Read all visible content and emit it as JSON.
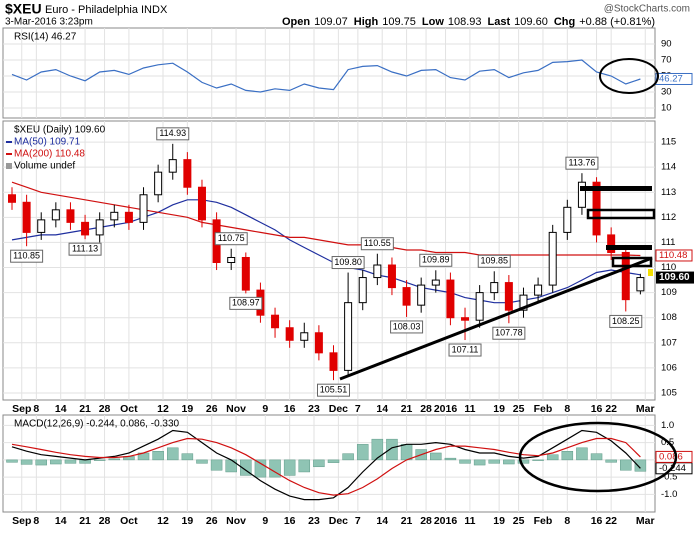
{
  "header": {
    "symbol": "$XEU",
    "name": "Euro - Philadelphia INDX",
    "date": "3-Mar-2016 3:23pm",
    "quote": [
      {
        "label": "Open",
        "value": "109.07"
      },
      {
        "label": "High",
        "value": "109.75"
      },
      {
        "label": "Low",
        "value": "108.93"
      },
      {
        "label": "Last",
        "value": "109.60"
      },
      {
        "label": "Chg",
        "value": "+0.88 (+0.81%)"
      }
    ],
    "source": "@StockCharts.com"
  },
  "chart_data": [
    {
      "type": "line",
      "title": "RSI(14) 46.27",
      "x": [
        0,
        3,
        6,
        9,
        12,
        15,
        18,
        21,
        24,
        27,
        30,
        33,
        36,
        39,
        42,
        45,
        48,
        51,
        54,
        57,
        60,
        63,
        66,
        69,
        72,
        75,
        78,
        81,
        84,
        87,
        90,
        93,
        96,
        99,
        102,
        105,
        108,
        111,
        114,
        117,
        120,
        123,
        126,
        129
      ],
      "xlim": [
        0,
        132
      ],
      "ylim": [
        -2.5,
        110
      ],
      "yticks": [
        10,
        30,
        50,
        70,
        90
      ],
      "grid": true,
      "series": [
        {
          "color": "#3a6fc4",
          "box": true,
          "values": [
            52,
            45,
            55,
            58,
            50,
            44,
            55,
            57,
            52,
            60,
            64,
            66,
            55,
            42,
            35,
            40,
            32,
            30,
            34,
            32,
            40,
            35,
            33,
            58,
            62,
            63,
            55,
            50,
            57,
            58,
            48,
            45,
            56,
            58,
            48,
            54,
            57,
            67,
            68,
            70,
            55,
            50,
            40,
            46.27
          ]
        }
      ]
    },
    {
      "type": "candlestick",
      "title": "$XEU (Daily) 109.60",
      "volume_legend": "Volume undef",
      "x": [
        0,
        3,
        6,
        9,
        12,
        15,
        18,
        21,
        24,
        27,
        30,
        33,
        36,
        39,
        42,
        45,
        48,
        51,
        54,
        57,
        60,
        63,
        66,
        69,
        72,
        75,
        78,
        81,
        84,
        87,
        90,
        93,
        96,
        99,
        102,
        105,
        108,
        111,
        114,
        117,
        120,
        123,
        126,
        129
      ],
      "xlim": [
        0,
        132
      ],
      "xticks": [
        {
          "value": 2,
          "label": "Sep"
        },
        {
          "value": 5,
          "label": "8"
        },
        {
          "value": 10,
          "label": "14"
        },
        {
          "value": 15,
          "label": "21"
        },
        {
          "value": 19,
          "label": "28"
        },
        {
          "value": 24,
          "label": "Oct"
        },
        {
          "value": 31,
          "label": "12"
        },
        {
          "value": 36,
          "label": "19"
        },
        {
          "value": 41,
          "label": "26"
        },
        {
          "value": 46,
          "label": "Nov"
        },
        {
          "value": 52,
          "label": "9"
        },
        {
          "value": 57,
          "label": "16"
        },
        {
          "value": 62,
          "label": "23"
        },
        {
          "value": 67,
          "label": "Dec"
        },
        {
          "value": 71,
          "label": "7"
        },
        {
          "value": 76,
          "label": "14"
        },
        {
          "value": 81,
          "label": "21"
        },
        {
          "value": 85,
          "label": "28"
        },
        {
          "value": 89,
          "label": "2016"
        },
        {
          "value": 94,
          "label": "11"
        },
        {
          "value": 100,
          "label": "19"
        },
        {
          "value": 104,
          "label": "25"
        },
        {
          "value": 109,
          "label": "Feb"
        },
        {
          "value": 114,
          "label": "8"
        },
        {
          "value": 120,
          "label": "16"
        },
        {
          "value": 123,
          "label": "22"
        },
        {
          "value": 130,
          "label": "Mar"
        }
      ],
      "ylim": [
        104.72,
        115.84
      ],
      "yticks": [
        105,
        106,
        107,
        108,
        109,
        110,
        111,
        112,
        113,
        114,
        115
      ],
      "grid": true,
      "up_color": "#000000",
      "down_color": "#e00000",
      "open": [
        112.9,
        112.6,
        111.4,
        111.9,
        112.3,
        111.8,
        111.3,
        111.9,
        112.2,
        111.8,
        112.9,
        113.8,
        114.3,
        113.2,
        111.9,
        110.2,
        110.4,
        109.1,
        108.1,
        107.6,
        107.1,
        107.4,
        106.6,
        105.9,
        108.6,
        109.6,
        110.1,
        109.2,
        108.5,
        109.3,
        109.5,
        108.0,
        107.9,
        109.0,
        109.4,
        108.3,
        108.9,
        109.3,
        111.4,
        112.4,
        113.4,
        111.3,
        110.6,
        109.07
      ],
      "high": [
        113.2,
        112.9,
        112.2,
        112.6,
        112.6,
        112.1,
        112.2,
        112.5,
        112.5,
        113.2,
        114.1,
        114.93,
        114.6,
        113.5,
        112.2,
        110.75,
        110.6,
        109.4,
        108.4,
        107.9,
        107.8,
        107.7,
        106.9,
        109.8,
        109.9,
        110.55,
        110.4,
        109.5,
        109.6,
        109.89,
        109.8,
        108.4,
        109.3,
        109.85,
        109.7,
        109.2,
        109.6,
        111.7,
        112.7,
        113.76,
        113.6,
        111.6,
        110.9,
        109.75
      ],
      "low": [
        112.3,
        110.85,
        111.1,
        111.6,
        111.5,
        111.13,
        111.0,
        111.6,
        111.5,
        111.5,
        112.6,
        113.5,
        112.9,
        111.6,
        109.9,
        109.9,
        108.97,
        107.8,
        107.2,
        106.8,
        106.8,
        106.3,
        105.51,
        105.7,
        108.3,
        109.3,
        108.9,
        108.03,
        108.2,
        109.0,
        107.7,
        107.11,
        107.6,
        108.7,
        107.78,
        108.0,
        108.6,
        109.0,
        111.1,
        112.1,
        111.0,
        110.3,
        108.25,
        108.93
      ],
      "close": [
        112.6,
        111.4,
        111.9,
        112.3,
        111.8,
        111.3,
        111.9,
        112.2,
        111.8,
        112.9,
        113.8,
        114.3,
        113.2,
        111.9,
        110.2,
        110.4,
        109.1,
        108.1,
        107.6,
        107.1,
        107.4,
        106.6,
        105.9,
        108.6,
        109.6,
        110.1,
        109.2,
        108.5,
        109.3,
        109.5,
        108.0,
        107.9,
        109.0,
        109.4,
        108.3,
        108.9,
        109.3,
        111.4,
        112.4,
        113.4,
        111.3,
        110.6,
        108.72,
        109.6
      ],
      "high_labels": [
        null,
        null,
        null,
        null,
        null,
        null,
        null,
        null,
        null,
        null,
        null,
        "114.93",
        null,
        null,
        null,
        "110.75",
        null,
        null,
        null,
        null,
        null,
        null,
        null,
        "109.80",
        null,
        "110.55",
        null,
        null,
        null,
        "109.89",
        null,
        null,
        null,
        "109.85",
        null,
        null,
        null,
        null,
        null,
        "113.76",
        null,
        null,
        null,
        null
      ],
      "low_labels": [
        null,
        "110.85",
        null,
        null,
        null,
        "111.13",
        null,
        null,
        null,
        null,
        null,
        null,
        null,
        null,
        null,
        null,
        "108.97",
        null,
        null,
        null,
        null,
        null,
        "105.51",
        null,
        null,
        null,
        null,
        "108.03",
        null,
        null,
        null,
        "107.11",
        null,
        null,
        "107.78",
        null,
        null,
        null,
        null,
        null,
        null,
        null,
        "108.25",
        null
      ],
      "series": [
        {
          "name": "MA(50) 109.71",
          "color": "#1f2f9f",
          "values": [
            111.1,
            111.2,
            111.3,
            111.3,
            111.4,
            111.5,
            111.6,
            111.7,
            111.8,
            112.0,
            112.2,
            112.5,
            112.7,
            112.7,
            112.6,
            112.4,
            112.1,
            111.8,
            111.5,
            111.1,
            110.8,
            110.5,
            110.2,
            110.0,
            109.9,
            109.7,
            109.6,
            109.4,
            109.2,
            109.1,
            109.0,
            108.8,
            108.7,
            108.6,
            108.6,
            108.7,
            108.8,
            109.0,
            109.2,
            109.5,
            109.8,
            109.9,
            109.8,
            109.71
          ]
        },
        {
          "name": "MA(200) 110.48",
          "color": "#d01010",
          "box": true,
          "values": [
            113.4,
            113.2,
            113.0,
            112.9,
            112.8,
            112.7,
            112.6,
            112.5,
            112.4,
            112.3,
            112.2,
            112.1,
            112.0,
            111.8,
            111.7,
            111.6,
            111.5,
            111.4,
            111.3,
            111.2,
            111.2,
            111.1,
            111.0,
            110.9,
            110.9,
            110.8,
            110.8,
            110.7,
            110.7,
            110.6,
            110.6,
            110.6,
            110.5,
            110.5,
            110.5,
            110.5,
            110.5,
            110.5,
            110.5,
            110.5,
            110.5,
            110.5,
            110.5,
            110.48
          ]
        }
      ]
    },
    {
      "type": "macd",
      "title": "MACD(12,26,9) -0.244, 0.086, -0.330",
      "x": [
        0,
        3,
        6,
        9,
        12,
        15,
        18,
        21,
        24,
        27,
        30,
        33,
        36,
        39,
        42,
        45,
        48,
        51,
        54,
        57,
        60,
        63,
        66,
        69,
        72,
        75,
        78,
        81,
        84,
        87,
        90,
        93,
        96,
        99,
        102,
        105,
        108,
        111,
        114,
        117,
        120,
        123,
        126,
        129
      ],
      "xlim": [
        0,
        132
      ],
      "xticks": [
        {
          "value": 2,
          "label": "Sep"
        },
        {
          "value": 5,
          "label": "8"
        },
        {
          "value": 10,
          "label": "14"
        },
        {
          "value": 15,
          "label": "21"
        },
        {
          "value": 19,
          "label": "28"
        },
        {
          "value": 24,
          "label": "Oct"
        },
        {
          "value": 31,
          "label": "12"
        },
        {
          "value": 36,
          "label": "19"
        },
        {
          "value": 41,
          "label": "26"
        },
        {
          "value": 46,
          "label": "Nov"
        },
        {
          "value": 52,
          "label": "9"
        },
        {
          "value": 57,
          "label": "16"
        },
        {
          "value": 62,
          "label": "23"
        },
        {
          "value": 67,
          "label": "Dec"
        },
        {
          "value": 71,
          "label": "7"
        },
        {
          "value": 76,
          "label": "14"
        },
        {
          "value": 81,
          "label": "21"
        },
        {
          "value": 85,
          "label": "28"
        },
        {
          "value": 89,
          "label": "2016"
        },
        {
          "value": 94,
          "label": "11"
        },
        {
          "value": 100,
          "label": "19"
        },
        {
          "value": 104,
          "label": "25"
        },
        {
          "value": 109,
          "label": "Feb"
        },
        {
          "value": 114,
          "label": "8"
        },
        {
          "value": 120,
          "label": "16"
        },
        {
          "value": 123,
          "label": "22"
        },
        {
          "value": 130,
          "label": "Mar"
        }
      ],
      "ylim": [
        -1.51,
        1.3
      ],
      "yticks": [
        {
          "value": -1,
          "label": "-1.0"
        },
        -0.5,
        {
          "value": 0,
          "label": "0.0"
        },
        0.5,
        {
          "value": 1,
          "label": "1.0"
        }
      ],
      "grid": true,
      "series": [
        {
          "color": "#8fc4b4",
          "style": "histogram",
          "values": [
            -0.07,
            -0.13,
            -0.15,
            -0.12,
            -0.1,
            -0.1,
            -0.02,
            0.03,
            0.1,
            0.2,
            0.25,
            0.35,
            0.18,
            -0.1,
            -0.3,
            -0.35,
            -0.45,
            -0.5,
            -0.5,
            -0.45,
            -0.35,
            -0.2,
            -0.08,
            0.18,
            0.45,
            0.6,
            0.6,
            0.45,
            0.3,
            0.2,
            0.05,
            -0.1,
            -0.15,
            -0.1,
            -0.12,
            -0.1,
            -0.02,
            0.15,
            0.25,
            0.35,
            0.18,
            -0.07,
            -0.3,
            -0.33
          ]
        },
        {
          "color": "#000000",
          "box": true,
          "values": [
            0.38,
            0.25,
            0.15,
            0.1,
            0.05,
            0.0,
            0.05,
            0.1,
            0.2,
            0.4,
            0.6,
            0.85,
            0.8,
            0.5,
            0.2,
            0.0,
            -0.3,
            -0.6,
            -0.85,
            -1.05,
            -1.15,
            -1.15,
            -1.1,
            -0.8,
            -0.35,
            0.05,
            0.35,
            0.45,
            0.45,
            0.5,
            0.45,
            0.3,
            0.2,
            0.2,
            0.1,
            0.05,
            0.1,
            0.35,
            0.6,
            0.85,
            0.8,
            0.55,
            0.2,
            -0.244
          ]
        },
        {
          "color": "#d01010",
          "box": true,
          "values": [
            0.45,
            0.38,
            0.3,
            0.22,
            0.15,
            0.1,
            0.07,
            0.07,
            0.1,
            0.2,
            0.35,
            0.5,
            0.62,
            0.6,
            0.5,
            0.35,
            0.15,
            -0.1,
            -0.35,
            -0.6,
            -0.8,
            -0.95,
            -1.02,
            -0.98,
            -0.8,
            -0.55,
            -0.25,
            0.0,
            0.15,
            0.3,
            0.4,
            0.4,
            0.35,
            0.3,
            0.22,
            0.15,
            0.12,
            0.2,
            0.35,
            0.5,
            0.62,
            0.62,
            0.5,
            0.086
          ]
        }
      ]
    }
  ]
}
